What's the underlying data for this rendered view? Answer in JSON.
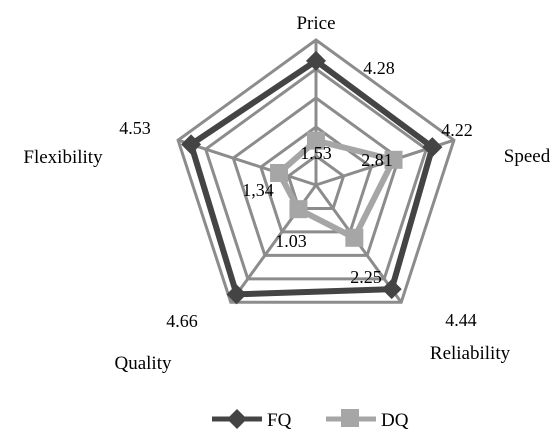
{
  "chart_data": {
    "type": "radar",
    "categories": [
      "Price",
      "Speed",
      "Reliability",
      "Quality",
      "Flexibility"
    ],
    "rlim": [
      0,
      5
    ],
    "grid": true,
    "grid_levels": [
      1,
      2,
      3,
      4,
      5
    ],
    "legend_position": "bottom",
    "series": [
      {
        "name": "FQ",
        "values": [
          4.28,
          4.22,
          4.44,
          4.66,
          4.53
        ],
        "labels": [
          "4.28",
          "4.22",
          "4.44",
          "4.66",
          "4.53"
        ],
        "color": "#444444",
        "marker": "diamond"
      },
      {
        "name": "DQ",
        "values": [
          1.53,
          2.81,
          2.25,
          1.03,
          1.34
        ],
        "labels": [
          "1.53",
          "2.81",
          "2.25",
          "1.03",
          "1,34"
        ],
        "color": "#a6a6a6",
        "marker": "square"
      }
    ]
  },
  "colors": {
    "grid": "#8c8c8c",
    "fq": "#444444",
    "dq": "#a6a6a6"
  }
}
